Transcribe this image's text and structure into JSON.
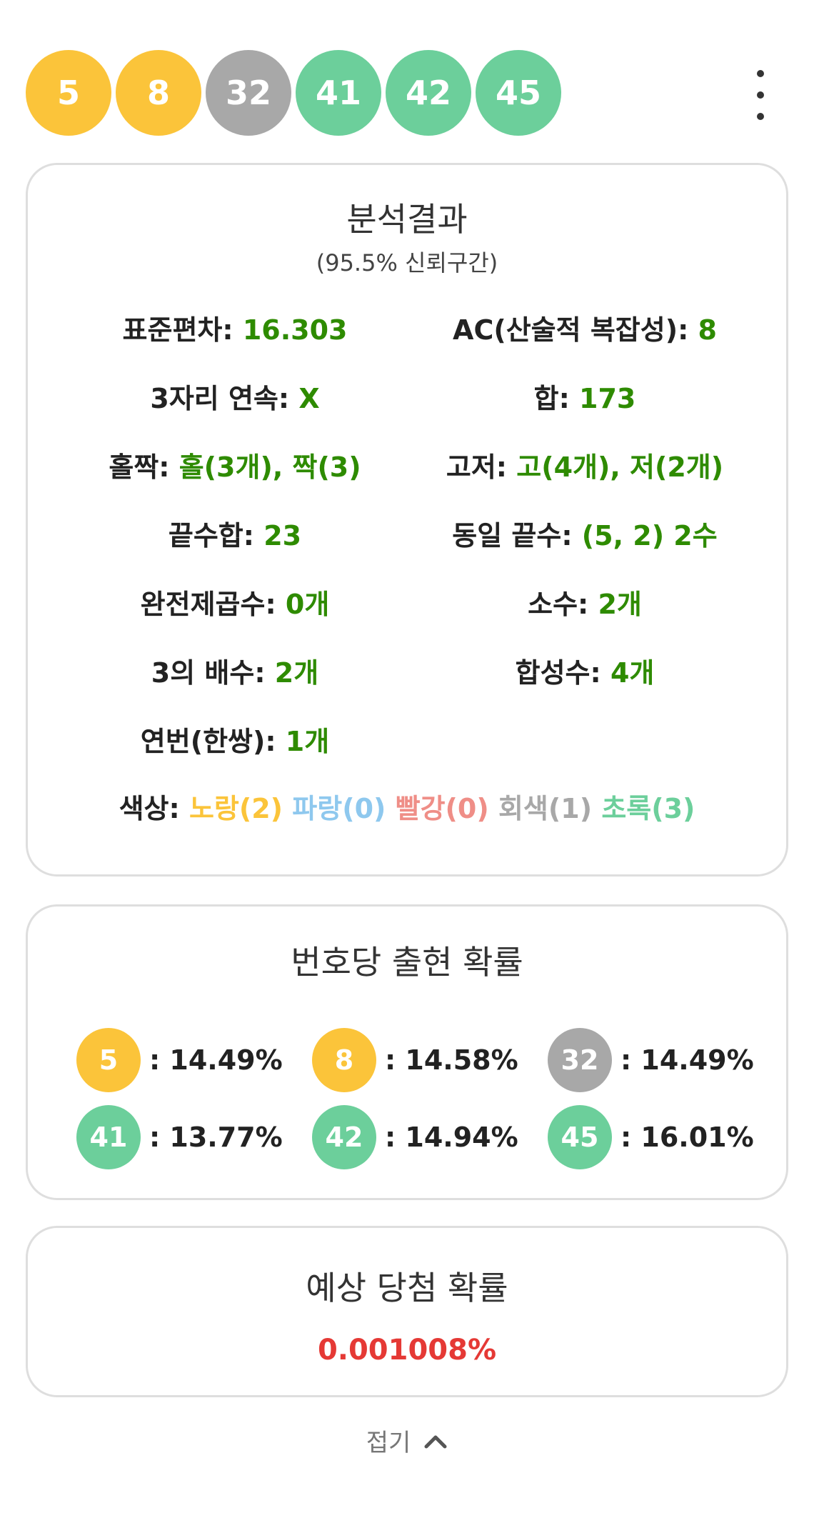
{
  "colors": {
    "yellow": "#fbc43a",
    "gray": "#a8a8a8",
    "green": "#6ccf9b",
    "blue": "#8ec8ee",
    "red": "#ef8e87",
    "value_green": "#2e8b00",
    "prob_red": "#e53935"
  },
  "numbers": [
    {
      "n": "5",
      "color": "yellow"
    },
    {
      "n": "8",
      "color": "yellow"
    },
    {
      "n": "32",
      "color": "gray"
    },
    {
      "n": "41",
      "color": "green"
    },
    {
      "n": "42",
      "color": "green"
    },
    {
      "n": "45",
      "color": "green"
    }
  ],
  "menu_icon": "more-vertical-icon",
  "analysis": {
    "title": "분석결과",
    "subtitle": "(95.5% 신뢰구간)",
    "stats": [
      {
        "label": "표준편차: ",
        "value": "16.303"
      },
      {
        "label": "AC(산술적 복잡성): ",
        "value": "8"
      },
      {
        "label": "3자리 연속: ",
        "value": "X"
      },
      {
        "label": "합: ",
        "value": "173"
      },
      {
        "label": "홀짝: ",
        "value": "홀(3개), 짝(3)"
      },
      {
        "label": "고저: ",
        "value": "고(4개), 저(2개)"
      },
      {
        "label": "끝수합: ",
        "value": "23"
      },
      {
        "label": "동일 끝수: ",
        "value": "(5, 2) 2수"
      },
      {
        "label": "완전제곱수: ",
        "value": "0개"
      },
      {
        "label": "소수: ",
        "value": "2개"
      },
      {
        "label": "3의 배수: ",
        "value": "2개"
      },
      {
        "label": "합성수: ",
        "value": "4개"
      },
      {
        "label": "연번(한쌍): ",
        "value": "1개"
      }
    ],
    "colors_label": "색상: ",
    "color_counts": [
      {
        "text": "노랑(2)",
        "color": "yellow"
      },
      {
        "text": "파랑(0)",
        "color": "blue"
      },
      {
        "text": "빨강(0)",
        "color": "red"
      },
      {
        "text": "회색(1)",
        "color": "gray"
      },
      {
        "text": "초록(3)",
        "color": "green"
      }
    ]
  },
  "per_number": {
    "title": "번호당 출현 확률",
    "items": [
      {
        "n": "5",
        "color": "yellow",
        "prob": ": 14.49%"
      },
      {
        "n": "8",
        "color": "yellow",
        "prob": ": 14.58%"
      },
      {
        "n": "32",
        "color": "gray",
        "prob": ": 14.49%"
      },
      {
        "n": "41",
        "color": "green",
        "prob": ": 13.77%"
      },
      {
        "n": "42",
        "color": "green",
        "prob": ": 14.94%"
      },
      {
        "n": "45",
        "color": "green",
        "prob": ": 16.01%"
      }
    ]
  },
  "win": {
    "title": "예상 당첨 확률",
    "value": "0.001008%"
  },
  "collapse": {
    "label": "접기",
    "icon": "chevron-up-icon"
  }
}
